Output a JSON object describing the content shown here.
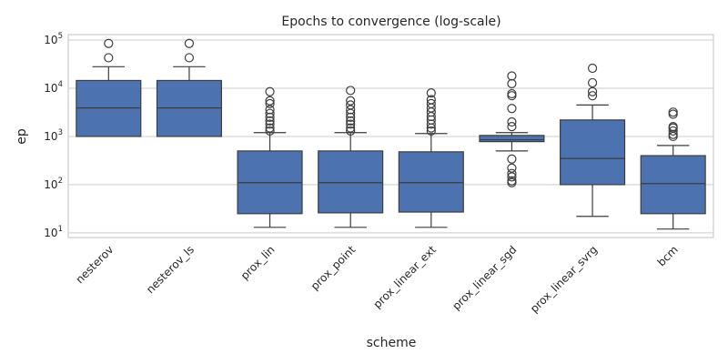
{
  "chart_data": {
    "type": "box",
    "title": "Epochs to convergence (log-scale)",
    "xlabel": "scheme",
    "ylabel": "ep",
    "yscale": "log",
    "ylim": [
      8,
      130000
    ],
    "yticks": [
      10,
      100,
      1000,
      10000,
      100000
    ],
    "ytick_labels": [
      {
        "base": "10",
        "exp": "1"
      },
      {
        "base": "10",
        "exp": "2"
      },
      {
        "base": "10",
        "exp": "3"
      },
      {
        "base": "10",
        "exp": "4"
      },
      {
        "base": "10",
        "exp": "5"
      }
    ],
    "grid": true,
    "color": "#4c72b0",
    "categories": [
      "nesterov",
      "nesterov_ls",
      "prox_lin",
      "prox_point",
      "prox_linear_ext",
      "prox_linear_sgd",
      "prox_linear_svrg",
      "bcm"
    ],
    "boxes": [
      {
        "whisker_low": 1000,
        "q1": 1000,
        "median": 3900,
        "q3": 14500,
        "whisker_high": 28000,
        "fliers": [
          43000,
          85000
        ]
      },
      {
        "whisker_low": 1000,
        "q1": 1000,
        "median": 3900,
        "q3": 14500,
        "whisker_high": 28000,
        "fliers": [
          43000,
          85000
        ]
      },
      {
        "whisker_low": 13,
        "q1": 25,
        "median": 110,
        "q3": 500,
        "whisker_high": 1200,
        "fliers": [
          1300,
          1500,
          1800,
          2100,
          2500,
          3000,
          3600,
          4800,
          5500,
          8500
        ]
      },
      {
        "whisker_low": 13,
        "q1": 26,
        "median": 110,
        "q3": 500,
        "whisker_high": 1200,
        "fliers": [
          1300,
          1500,
          1800,
          2100,
          2500,
          3000,
          3600,
          4500,
          5500,
          9000
        ]
      },
      {
        "whisker_low": 13,
        "q1": 27,
        "median": 110,
        "q3": 480,
        "whisker_high": 1150,
        "fliers": [
          1300,
          1500,
          1800,
          2200,
          2600,
          3200,
          3900,
          4800,
          5800,
          8000
        ]
      },
      {
        "whisker_low": 500,
        "q1": 780,
        "median": 850,
        "q3": 1050,
        "whisker_high": 1200,
        "fliers": [
          110,
          120,
          145,
          170,
          220,
          340,
          1600,
          2000,
          3800,
          7000,
          7700,
          12500,
          18000
        ]
      },
      {
        "whisker_low": 22,
        "q1": 100,
        "median": 350,
        "q3": 2200,
        "whisker_high": 4500,
        "fliers": [
          7000,
          8500,
          13000,
          26000
        ]
      },
      {
        "whisker_low": 12,
        "q1": 25,
        "median": 105,
        "q3": 400,
        "whisker_high": 650,
        "fliers": [
          1000,
          1100,
          1300,
          1500,
          1600,
          2900,
          3200
        ]
      }
    ]
  }
}
